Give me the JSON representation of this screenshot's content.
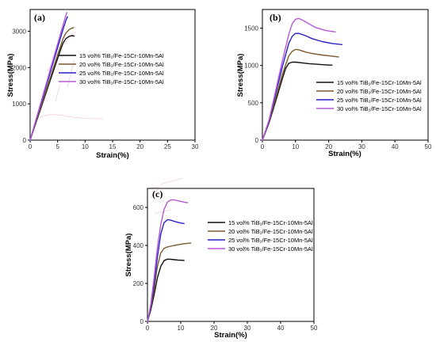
{
  "colors": {
    "s15": "#111111",
    "s20": "#7b5a2e",
    "s25": "#2a1fc8",
    "s30": "#b45ad8",
    "ghost": "#e46a96"
  },
  "chart_data": [
    {
      "id": "a",
      "type": "line",
      "panel_label": "(a)",
      "xlabel": "Strain(%)",
      "ylabel": "Stress(MPa)",
      "xlim": [
        0,
        30
      ],
      "ylim": [
        0,
        3600
      ],
      "xticks": [
        0,
        5,
        10,
        15,
        20,
        25,
        30
      ],
      "yticks": [
        0,
        1000,
        2000,
        3000
      ],
      "legend": "right",
      "series": [
        {
          "name": "15 vol% TiB₂/Fe-15Cr-10Mn-5Al",
          "color_key": "s15",
          "x": [
            0,
            1,
            2,
            3,
            4,
            5,
            5.5,
            6,
            6.5,
            7,
            7.5,
            8
          ],
          "y": [
            0,
            450,
            900,
            1350,
            1800,
            2250,
            2470,
            2680,
            2800,
            2850,
            2880,
            2870
          ]
        },
        {
          "name": "20 vol% TiB₂/Fe-15Cr-10Mn-5Al",
          "color_key": "s20",
          "x": [
            0,
            1,
            2,
            3,
            4,
            5,
            6,
            6.5,
            7,
            7.5,
            7.9
          ],
          "y": [
            0,
            470,
            940,
            1410,
            1880,
            2350,
            2800,
            2950,
            3030,
            3080,
            3100
          ]
        },
        {
          "name": "25 vol% TiB₂/Fe-15Cr-10Mn-5Al",
          "color_key": "s25",
          "x": [
            0,
            1,
            2,
            3,
            4,
            5,
            6,
            6.5,
            6.8
          ],
          "y": [
            0,
            510,
            1020,
            1530,
            2040,
            2550,
            3060,
            3300,
            3400
          ]
        },
        {
          "name": "30 vol% TiB₂/Fe-15Cr-10Mn-5Al",
          "color_key": "s30",
          "x": [
            0,
            1,
            2,
            3,
            4,
            5,
            6,
            6.5,
            6.7
          ],
          "y": [
            0,
            530,
            1060,
            1590,
            2120,
            2650,
            3180,
            3440,
            3520
          ]
        }
      ]
    },
    {
      "id": "b",
      "type": "line",
      "panel_label": "(b)",
      "xlabel": "Strain(%)",
      "ylabel": "Stress(MPa)",
      "xlim": [
        0,
        50
      ],
      "ylim": [
        0,
        1750
      ],
      "xticks": [
        0,
        10,
        20,
        30,
        40,
        50
      ],
      "yticks": [
        0,
        500,
        1000,
        1500
      ],
      "legend": "lower-right",
      "series": [
        {
          "name": "15 vol% TiB₂/Fe-15Cr-10Mn-5Al",
          "color_key": "s15",
          "x": [
            0,
            2,
            4,
            6,
            7,
            8,
            9,
            10,
            12,
            14,
            17,
            20,
            21
          ],
          "y": [
            0,
            230,
            520,
            820,
            960,
            1030,
            1045,
            1045,
            1035,
            1025,
            1015,
            1005,
            1005
          ]
        },
        {
          "name": "20 vol% TiB₂/Fe-15Cr-10Mn-5Al",
          "color_key": "s20",
          "x": [
            0,
            2,
            4,
            6,
            8,
            9,
            10,
            11,
            13,
            15,
            18,
            21,
            23
          ],
          "y": [
            0,
            240,
            560,
            880,
            1130,
            1190,
            1215,
            1210,
            1180,
            1160,
            1140,
            1125,
            1115
          ]
        },
        {
          "name": "25 vol% TiB₂/Fe-15Cr-10Mn-5Al",
          "color_key": "s25",
          "x": [
            0,
            2,
            4,
            6,
            8,
            9,
            10,
            11,
            13,
            15,
            18,
            21,
            24
          ],
          "y": [
            0,
            260,
            620,
            980,
            1300,
            1390,
            1430,
            1430,
            1400,
            1360,
            1320,
            1295,
            1280
          ]
        },
        {
          "name": "30 vol% TiB₂/Fe-15Cr-10Mn-5Al",
          "color_key": "s30",
          "x": [
            0,
            2,
            4,
            6,
            8,
            9,
            10,
            11,
            12,
            14,
            16,
            19,
            22
          ],
          "y": [
            0,
            270,
            660,
            1060,
            1420,
            1560,
            1620,
            1630,
            1610,
            1560,
            1510,
            1470,
            1450
          ]
        }
      ]
    },
    {
      "id": "c",
      "type": "line",
      "panel_label": "(c)",
      "xlabel": "Strain(%)",
      "ylabel": "Stress(MPa)",
      "xlim": [
        0,
        50
      ],
      "ylim": [
        0,
        700
      ],
      "xticks": [
        0,
        10,
        20,
        30,
        40,
        50
      ],
      "yticks": [
        0,
        200,
        400,
        600
      ],
      "legend": "right",
      "series": [
        {
          "name": "15 vol% TiB₂/Fe-15Cr-10Mn-5Al",
          "color_key": "s15",
          "x": [
            0,
            1,
            2,
            3,
            4,
            5,
            6,
            7,
            8,
            9,
            10,
            11
          ],
          "y": [
            0,
            60,
            140,
            230,
            290,
            320,
            328,
            327,
            325,
            323,
            322,
            321
          ]
        },
        {
          "name": "20 vol% TiB₂/Fe-15Cr-10Mn-5Al",
          "color_key": "s20",
          "x": [
            0,
            1,
            2,
            3,
            4,
            5,
            6,
            7,
            8,
            9,
            10,
            11,
            12,
            13
          ],
          "y": [
            0,
            70,
            170,
            290,
            360,
            385,
            392,
            396,
            400,
            403,
            406,
            409,
            411,
            413
          ]
        },
        {
          "name": "25 vol% TiB₂/Fe-15Cr-10Mn-5Al",
          "color_key": "s25",
          "x": [
            0,
            1,
            2,
            3,
            4,
            5,
            6,
            7,
            8,
            9,
            10,
            11
          ],
          "y": [
            0,
            80,
            200,
            340,
            460,
            520,
            535,
            533,
            527,
            522,
            518,
            515
          ]
        },
        {
          "name": "30 vol% TiB₂/Fe-15Cr-10Mn-5Al",
          "color_key": "s30",
          "x": [
            0,
            1,
            2,
            3,
            4,
            5,
            6,
            7,
            8,
            9,
            10,
            11,
            12
          ],
          "y": [
            0,
            90,
            230,
            390,
            510,
            590,
            628,
            640,
            640,
            636,
            632,
            628,
            625
          ]
        }
      ]
    }
  ]
}
